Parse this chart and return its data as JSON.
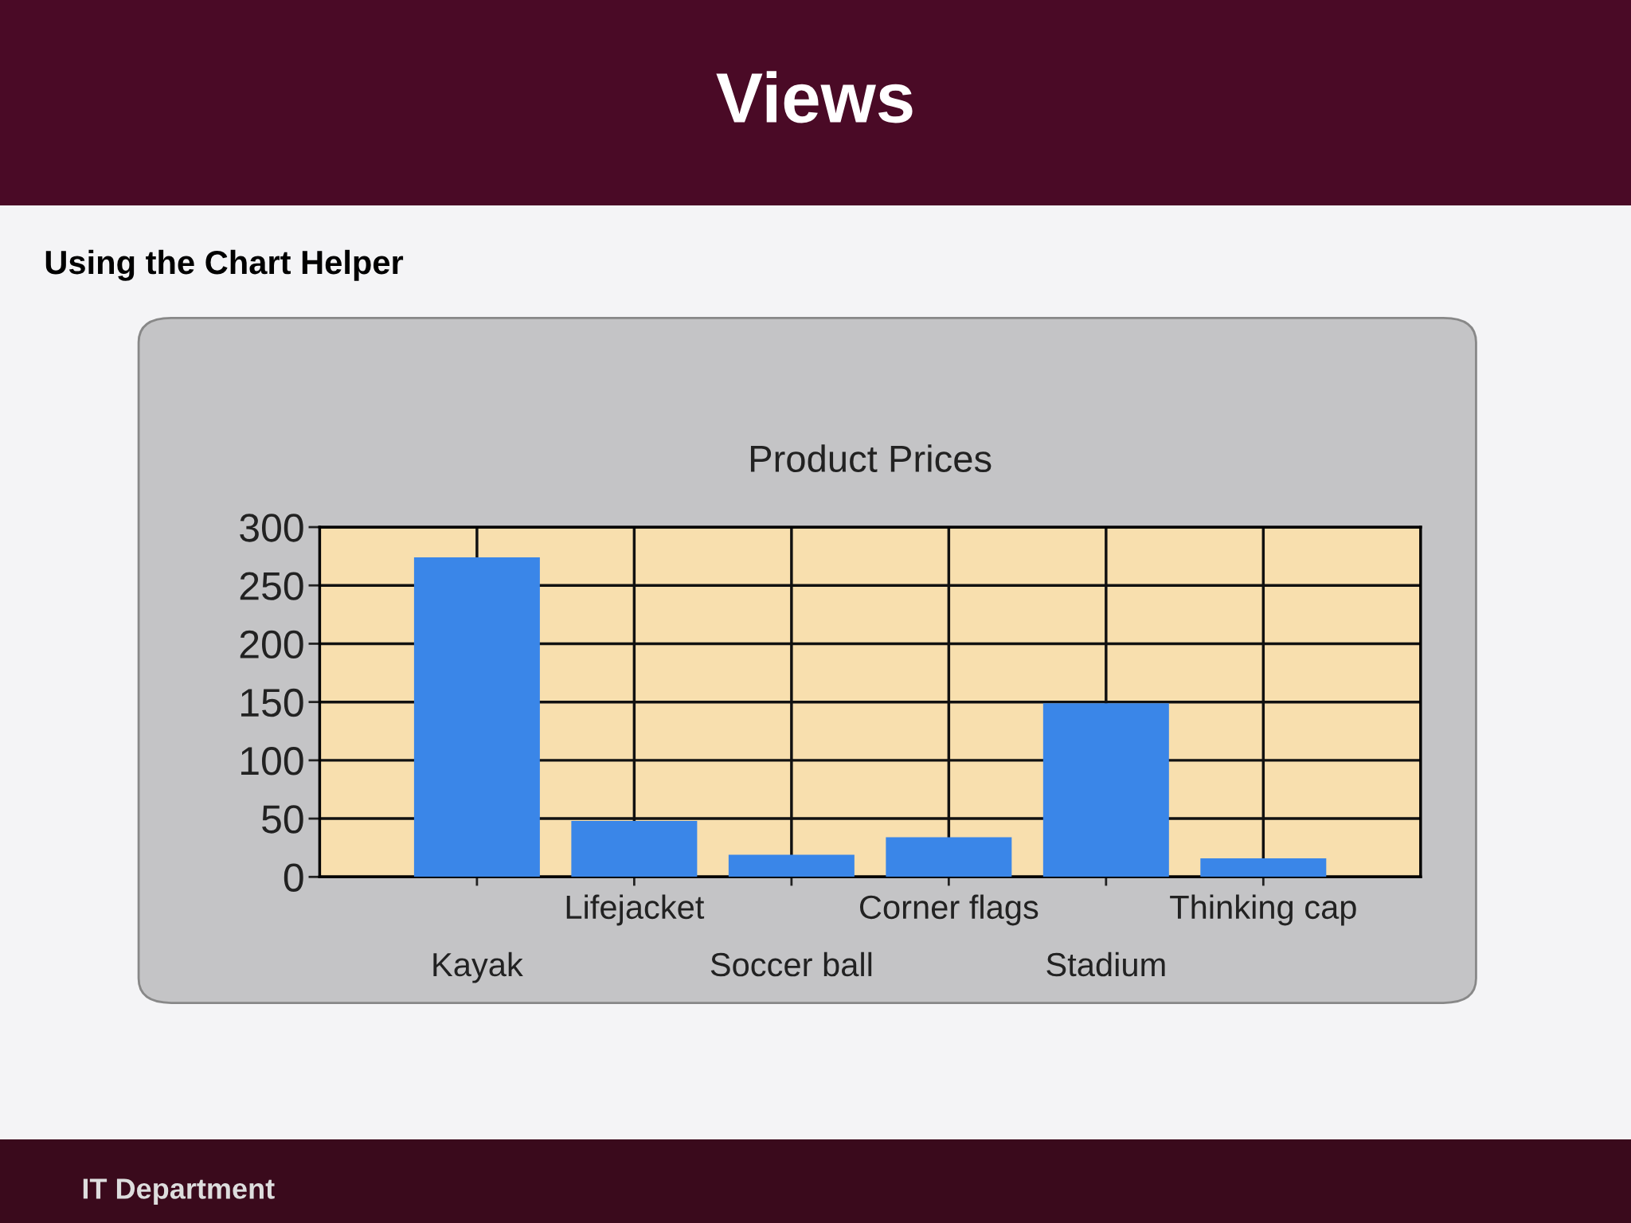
{
  "chart_data": {
    "type": "bar",
    "title": "Product Prices",
    "annotations": [
      "Views",
      "Using the Chart Helper",
      "IT Department"
    ],
    "categories": [
      "Kayak",
      "Lifejacket",
      "Soccer ball",
      "Corner flags",
      "Stadium",
      "Thinking cap"
    ],
    "values": [
      274,
      48,
      19,
      34,
      149,
      16
    ],
    "color": "#3a86e8",
    "ylim": [
      0,
      300
    ],
    "yticks": [
      0,
      50,
      100,
      150,
      200,
      250,
      300
    ],
    "grid": true
  }
}
